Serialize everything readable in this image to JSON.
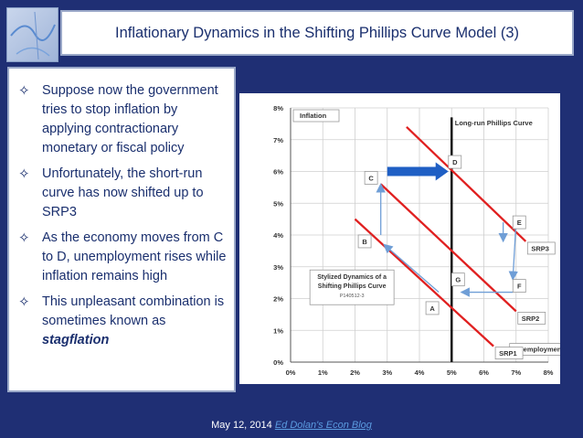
{
  "slide": {
    "title": "Inflationary Dynamics in the Shifting Phillips Curve Model (3)",
    "footer_date": "May 12, 2014",
    "footer_link": "Ed Dolan's Econ Blog"
  },
  "bullets": [
    {
      "text": "Suppose now the government tries to stop inflation by applying contractionary monetary or fiscal policy"
    },
    {
      "text": "Unfortunately, the short-run curve has now shifted up to SRP3"
    },
    {
      "text": "As the economy moves from C to D, unemployment rises while inflation remains high"
    },
    {
      "text": "This unpleasant combination is sometimes known as ",
      "bold": "stagflation"
    }
  ],
  "chart_data": {
    "type": "line",
    "ylabel": "Inflation",
    "xlabel": "Unemployment",
    "xlim": [
      0,
      8
    ],
    "ylim": [
      0,
      8
    ],
    "x_ticks": [
      "0%",
      "1%",
      "2%",
      "3%",
      "4%",
      "5%",
      "6%",
      "7%",
      "8%"
    ],
    "y_ticks": [
      "0%",
      "1%",
      "2%",
      "3%",
      "4%",
      "5%",
      "6%",
      "7%",
      "8%"
    ],
    "grid": true,
    "long_run_curve": {
      "label": "Long-run Phillips Curve",
      "x": 5
    },
    "series": [
      {
        "name": "SRP1",
        "color": "#e02020",
        "points": [
          [
            2.0,
            4.5
          ],
          [
            6.3,
            0.5
          ]
        ]
      },
      {
        "name": "SRP2",
        "color": "#e02020",
        "points": [
          [
            2.8,
            5.6
          ],
          [
            7.0,
            1.6
          ]
        ]
      },
      {
        "name": "SRP3",
        "color": "#e02020",
        "points": [
          [
            3.6,
            7.4
          ],
          [
            7.3,
            3.8
          ]
        ]
      }
    ],
    "points": [
      {
        "label": "A",
        "x": 4.4,
        "y": 1.7
      },
      {
        "label": "B",
        "x": 2.3,
        "y": 3.8
      },
      {
        "label": "C",
        "x": 2.5,
        "y": 5.8
      },
      {
        "label": "D",
        "x": 5.1,
        "y": 6.3
      },
      {
        "label": "E",
        "x": 7.1,
        "y": 4.4
      },
      {
        "label": "F",
        "x": 7.1,
        "y": 2.4
      },
      {
        "label": "G",
        "x": 5.2,
        "y": 2.6
      }
    ],
    "arrows": [
      {
        "from": [
          4.6,
          2.2
        ],
        "to": [
          2.9,
          3.7
        ],
        "style": "thin"
      },
      {
        "from": [
          2.8,
          4.0
        ],
        "to": [
          2.8,
          5.6
        ],
        "style": "thin"
      },
      {
        "from": [
          3.0,
          6.0
        ],
        "to": [
          4.9,
          6.0
        ],
        "style": "bold"
      },
      {
        "from": [
          6.6,
          4.4
        ],
        "to": [
          6.6,
          3.8
        ],
        "style": "thin"
      },
      {
        "from": [
          7.0,
          4.4
        ],
        "to": [
          6.9,
          2.6
        ],
        "style": "thin"
      },
      {
        "from": [
          6.9,
          2.2
        ],
        "to": [
          5.3,
          2.2
        ],
        "style": "thin"
      }
    ],
    "annotation": {
      "lines": [
        "Stylized Dynamics of a",
        "Shifting Phillips Curve"
      ],
      "sub": "P140512-3"
    }
  },
  "colors": {
    "background": "#1f2f74",
    "text": "#1a2f6e",
    "curve": "#e02020",
    "arrow": "#6f9ed6",
    "bold_arrow": "#1f5fc4"
  }
}
